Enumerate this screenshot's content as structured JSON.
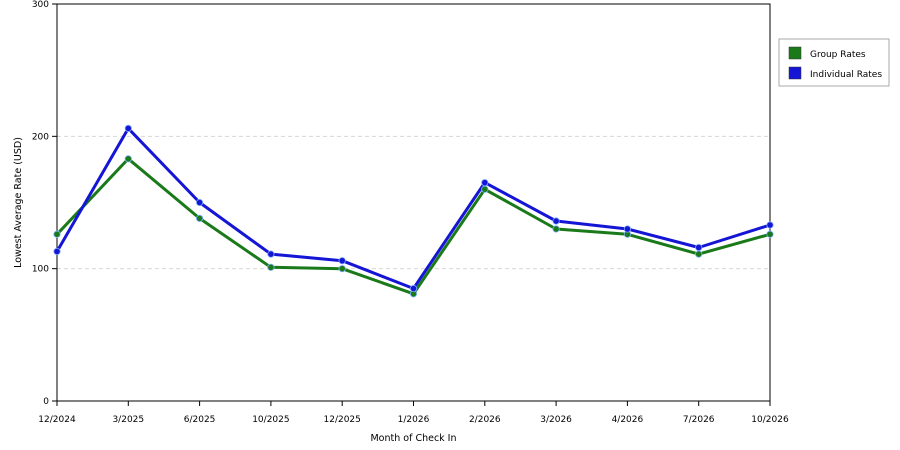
{
  "chart_data": {
    "type": "line",
    "title": "",
    "xlabel": "Month of Check In",
    "ylabel": "Lowest Average Rate (USD)",
    "categories": [
      "12/2024",
      "3/2025",
      "6/2025",
      "10/2025",
      "12/2025",
      "1/2026",
      "2/2026",
      "3/2026",
      "4/2026",
      "7/2026",
      "10/2026"
    ],
    "ylim": [
      0,
      300
    ],
    "yticks": [
      0,
      100,
      200,
      300
    ],
    "grid": "horizontal dashed at 100 and 200",
    "legend_position": "right",
    "series": [
      {
        "name": "Group Rates",
        "color": "#1a7a1a",
        "values": [
          126,
          183,
          138,
          101,
          100,
          81,
          160,
          130,
          126,
          111,
          126
        ]
      },
      {
        "name": "Individual Rates",
        "color": "#1515d6",
        "values": [
          113,
          206,
          150,
          111,
          106,
          85,
          165,
          136,
          130,
          116,
          133
        ]
      }
    ]
  }
}
